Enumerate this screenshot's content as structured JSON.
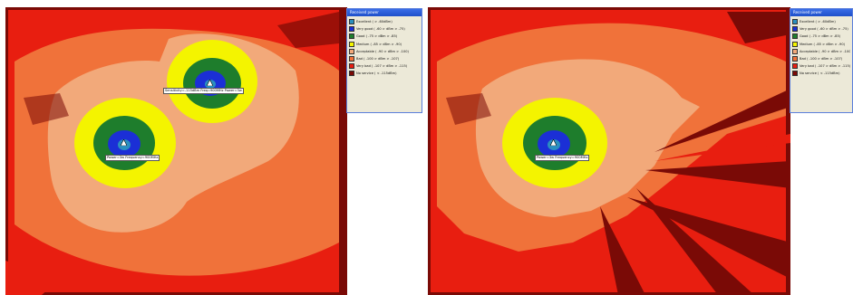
{
  "legend": {
    "title": "Received power",
    "colors": {
      "excellent": "#2a8fbf",
      "very_good": "#1b2fd6",
      "good": "#1e7d2c",
      "medium": "#f4f400",
      "acceptable": "#f2a97a",
      "bad": "#f0723a",
      "very_bad": "#e81e10",
      "no_service": "#7a0a06"
    },
    "items": [
      {
        "label": "Excellent ( > -60dBm)"
      },
      {
        "label": "Very good ( -60 > dBm > -75)"
      },
      {
        "label": "Good ( -75 > dBm > -85)"
      },
      {
        "label": "Medium ( -85 > dBm > -90)"
      },
      {
        "label": "Acceptable ( -90 > dBm > -100)"
      },
      {
        "label": "Bad ( -100 > dBm > -107)"
      },
      {
        "label": "Very bad ( -107 > dBm > -115)"
      },
      {
        "label": "No service ( < -115dBm)"
      }
    ]
  },
  "left_view": {
    "transmitters": [
      {
        "label": "Power=3w  Frequency=900MHz"
      },
      {
        "label": "Sensitivity=-115dBm  Freq=900MHz  Power=3w"
      }
    ]
  },
  "right_view": {
    "transmitters": [
      {
        "label": "Power=3w  Frequency=900MHz"
      }
    ]
  }
}
